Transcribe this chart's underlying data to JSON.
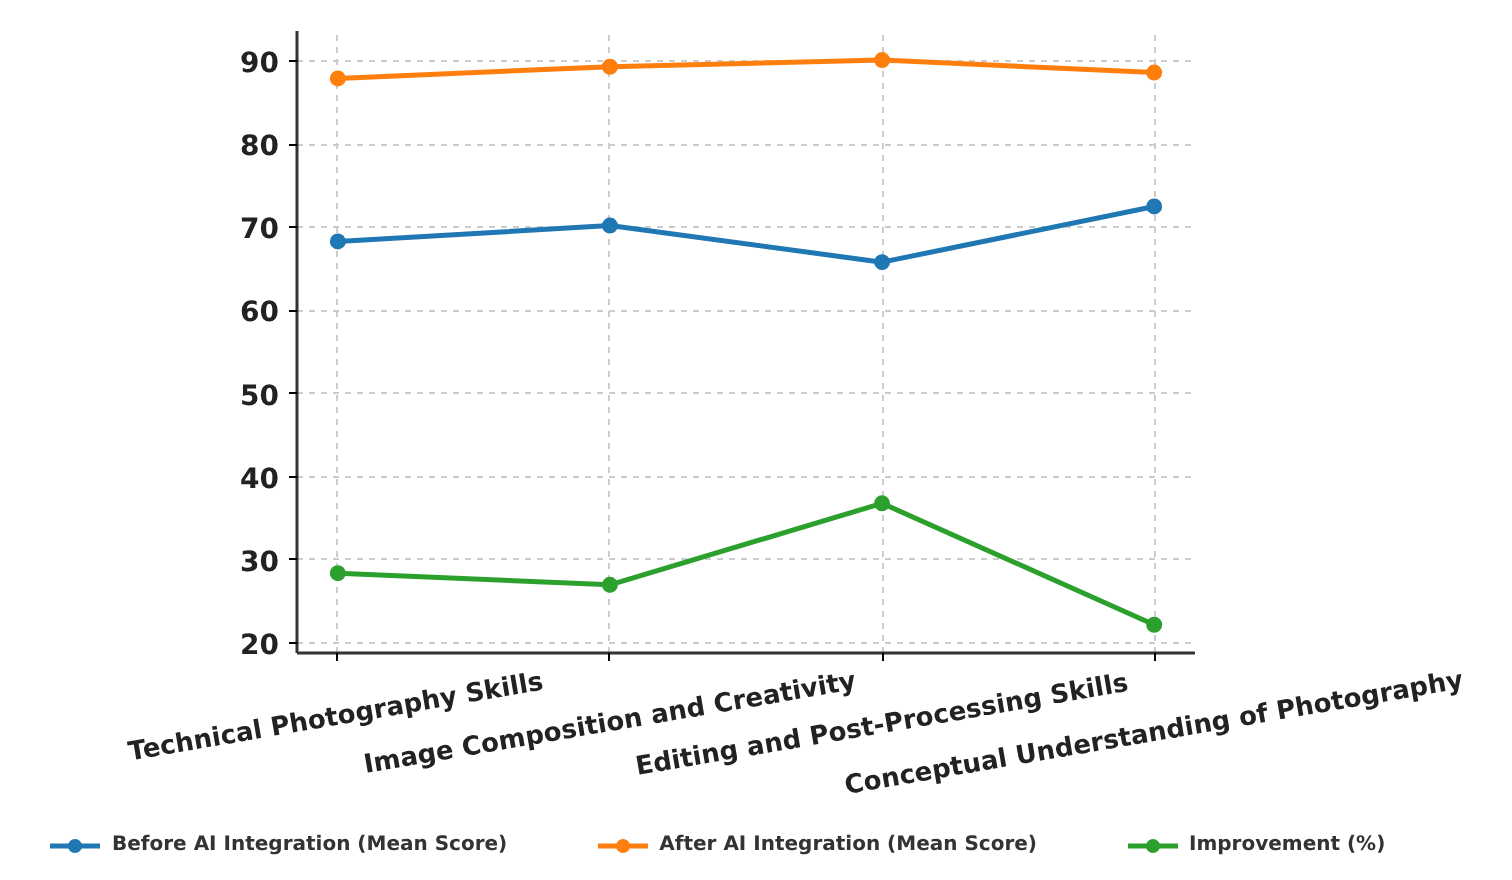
{
  "chart_data": {
    "type": "line",
    "categories": [
      "Technical Photography Skills",
      "Image Composition and Creativity",
      "Editing and Post-Processing Skills",
      "Conceptual Understanding of Photography"
    ],
    "series": [
      {
        "name": "Before AI Integration (Mean Score)",
        "color": "#1f77b4",
        "values": [
          68.3,
          70.2,
          65.8,
          72.5
        ]
      },
      {
        "name": "After AI Integration (Mean Score)",
        "color": "#ff7f0e",
        "values": [
          87.9,
          89.3,
          90.1,
          88.6
        ]
      },
      {
        "name": "Improvement (%)",
        "color": "#2ca02c",
        "values": [
          28.4,
          27.0,
          36.8,
          22.2
        ]
      }
    ],
    "ylim": [
      18.8,
      93.6
    ],
    "yticks": [
      20,
      30,
      40,
      50,
      60,
      70,
      80,
      90
    ],
    "grid": true,
    "legend": "bottom",
    "marker": "circle",
    "line_style": "solid"
  }
}
